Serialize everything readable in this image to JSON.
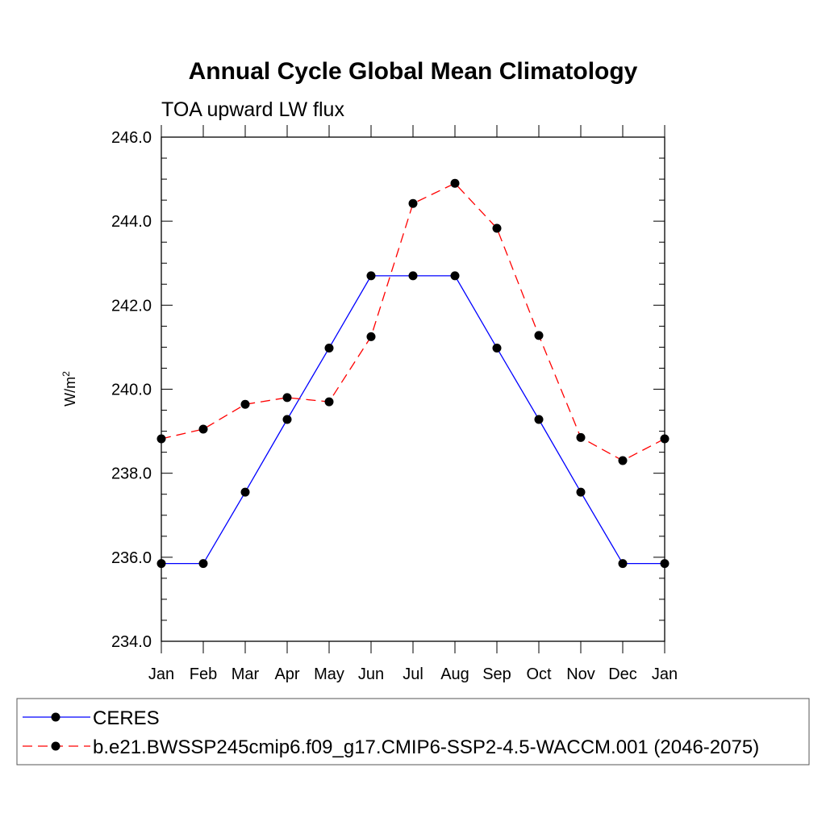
{
  "chart_data": {
    "type": "line",
    "title": "Annual Cycle Global Mean Climatology",
    "subtitle": "TOA upward LW flux",
    "ylabel": "W/m",
    "ylabel_sup": "2",
    "categories": [
      "Jan",
      "Feb",
      "Mar",
      "Apr",
      "May",
      "Jun",
      "Jul",
      "Aug",
      "Sep",
      "Oct",
      "Nov",
      "Dec",
      "Jan"
    ],
    "yticks": [
      "234.0",
      "236.0",
      "238.0",
      "240.0",
      "242.0",
      "244.0",
      "246.0"
    ],
    "ylim": [
      234.0,
      246.0
    ],
    "series": [
      {
        "name": "CERES",
        "color": "#0000ff",
        "dash": "solid",
        "values": [
          235.85,
          235.85,
          237.55,
          239.28,
          240.98,
          242.7,
          242.7,
          242.7,
          240.98,
          239.28,
          237.55,
          235.85,
          235.85
        ]
      },
      {
        "name": "b.e21.BWSSP245cmip6.f09_g17.CMIP6-SSP2-4.5-WACCM.001 (2046-2075)",
        "color": "#ff0000",
        "dash": "dashed",
        "values": [
          238.82,
          239.05,
          239.64,
          239.8,
          239.7,
          241.25,
          244.42,
          244.9,
          243.83,
          241.28,
          238.85,
          238.3,
          238.82
        ]
      }
    ],
    "grid": false,
    "legend_position": "bottom"
  }
}
